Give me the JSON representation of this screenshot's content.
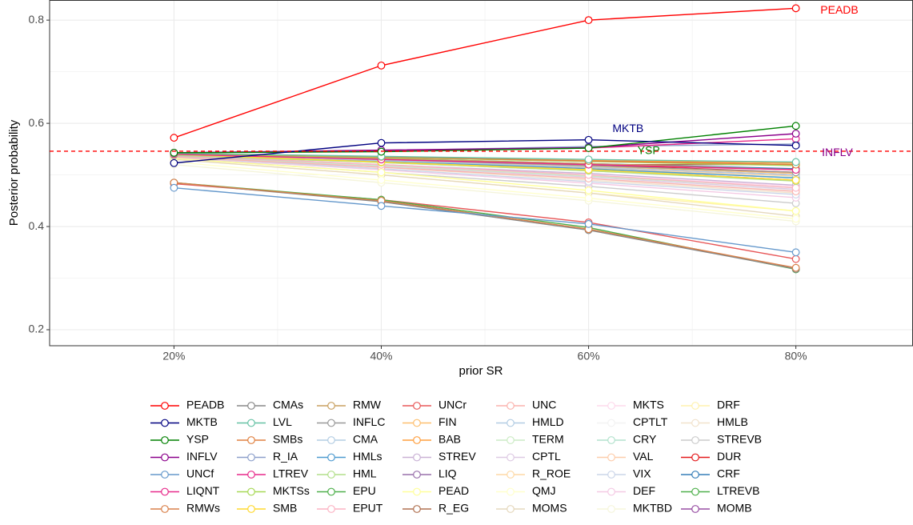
{
  "chart_data": {
    "type": "line",
    "x_label": "prior SR",
    "y_label": "Posterior probability",
    "x": [
      20,
      40,
      60,
      80
    ],
    "xlim": [
      8,
      91.3
    ],
    "ylim": [
      0.169,
      0.839
    ],
    "xticks": [
      {
        "value": 20,
        "label": "20%"
      },
      {
        "value": 40,
        "label": "40%"
      },
      {
        "value": 60,
        "label": "60%"
      },
      {
        "value": 80,
        "label": "80%"
      }
    ],
    "yticks": [
      0.2,
      0.4,
      0.6,
      0.8
    ],
    "grid": true,
    "legend": "bottom",
    "hline": {
      "value": 0.546,
      "color": "#ff0000"
    },
    "annotations": [
      {
        "text": "PEADB",
        "x": 84.2,
        "y": 0.818,
        "color": "#ff0000"
      },
      {
        "text": "MKTB",
        "x": 63.8,
        "y": 0.589,
        "color": "#000080"
      },
      {
        "text": "YSP",
        "x": 65.8,
        "y": 0.546,
        "color": "#008000"
      },
      {
        "text": "INFLV",
        "x": 84.0,
        "y": 0.542,
        "color": "#8b008b"
      }
    ],
    "series": [
      {
        "name": "PEADB",
        "color": "#ff0000",
        "values": [
          0.572,
          0.712,
          0.8,
          0.823
        ]
      },
      {
        "name": "MKTB",
        "color": "#000080",
        "values": [
          0.523,
          0.562,
          0.568,
          0.557
        ]
      },
      {
        "name": "YSP",
        "color": "#008000",
        "values": [
          0.543,
          0.545,
          0.552,
          0.595
        ]
      },
      {
        "name": "INFLV",
        "color": "#8b008b",
        "values": [
          0.543,
          0.548,
          0.553,
          0.58
        ]
      },
      {
        "name": "UNCf",
        "color": "#6699cc",
        "values": [
          0.475,
          0.44,
          0.405,
          0.35
        ]
      },
      {
        "name": "LIQNT",
        "color": "#e7298a",
        "values": [
          0.543,
          0.546,
          0.552,
          0.57
        ]
      },
      {
        "name": "RMWs",
        "color": "#d9804a",
        "values": [
          0.485,
          0.45,
          0.395,
          0.32
        ]
      },
      {
        "name": "CMAs",
        "color": "#888888",
        "values": [
          0.485,
          0.448,
          0.393,
          0.318
        ]
      },
      {
        "name": "LVL",
        "color": "#66c2a5",
        "values": [
          0.542,
          0.536,
          0.53,
          0.525
        ]
      },
      {
        "name": "SMBs",
        "color": "#e08040",
        "values": [
          0.542,
          0.535,
          0.527,
          0.52
        ]
      },
      {
        "name": "R_IA",
        "color": "#8da0cb",
        "values": [
          0.543,
          0.547,
          0.555,
          0.56
        ]
      },
      {
        "name": "LTREV",
        "color": "#e7298a",
        "values": [
          0.54,
          0.53,
          0.52,
          0.51
        ]
      },
      {
        "name": "MKTSs",
        "color": "#a6d854",
        "values": [
          0.541,
          0.534,
          0.526,
          0.518
        ]
      },
      {
        "name": "SMB",
        "color": "#ffd92f",
        "values": [
          0.54,
          0.525,
          0.51,
          0.49
        ]
      },
      {
        "name": "RMW",
        "color": "#c8a060",
        "values": [
          0.541,
          0.532,
          0.522,
          0.51
        ]
      },
      {
        "name": "INFLC",
        "color": "#999999",
        "values": [
          0.541,
          0.53,
          0.518,
          0.505
        ]
      },
      {
        "name": "CMA",
        "color": "#b3cde3",
        "values": [
          0.54,
          0.528,
          0.515,
          0.5
        ]
      },
      {
        "name": "HMLs",
        "color": "#4f9bd0",
        "values": [
          0.54,
          0.527,
          0.512,
          0.494
        ]
      },
      {
        "name": "HML",
        "color": "#b2df8a",
        "values": [
          0.538,
          0.524,
          0.508,
          0.488
        ]
      },
      {
        "name": "EPU",
        "color": "#4daf4a",
        "values": [
          0.485,
          0.452,
          0.398,
          0.317
        ]
      },
      {
        "name": "EPUT",
        "color": "#fbb4c4",
        "values": [
          0.538,
          0.52,
          0.5,
          0.475
        ]
      },
      {
        "name": "UNCr",
        "color": "#e8595a",
        "values": [
          0.483,
          0.452,
          0.408,
          0.337
        ]
      },
      {
        "name": "FIN",
        "color": "#fdbf6f",
        "values": [
          0.54,
          0.529,
          0.517,
          0.503
        ]
      },
      {
        "name": "BAB",
        "color": "#ff9f3f",
        "values": [
          0.541,
          0.535,
          0.528,
          0.523
        ]
      },
      {
        "name": "STREV",
        "color": "#cab2d6",
        "values": [
          0.537,
          0.52,
          0.503,
          0.48
        ]
      },
      {
        "name": "LIQ",
        "color": "#9970ab",
        "values": [
          0.54,
          0.528,
          0.515,
          0.5
        ]
      },
      {
        "name": "PEAD",
        "color": "#ffff99",
        "values": [
          0.532,
          0.505,
          0.47,
          0.43
        ]
      },
      {
        "name": "R_EG",
        "color": "#b07050",
        "values": [
          0.541,
          0.53,
          0.52,
          0.52
        ]
      },
      {
        "name": "UNC",
        "color": "#fbb4ae",
        "values": [
          0.535,
          0.515,
          0.493,
          0.468
        ]
      },
      {
        "name": "HMLD",
        "color": "#b3cde3",
        "values": [
          0.538,
          0.524,
          0.508,
          0.49
        ]
      },
      {
        "name": "TERM",
        "color": "#ccebc5",
        "values": [
          0.536,
          0.518,
          0.498,
          0.475
        ]
      },
      {
        "name": "CPTL",
        "color": "#decbe4",
        "values": [
          0.536,
          0.517,
          0.496,
          0.472
        ]
      },
      {
        "name": "R_ROE",
        "color": "#fed9a6",
        "values": [
          0.539,
          0.526,
          0.512,
          0.498
        ]
      },
      {
        "name": "QMJ",
        "color": "#ffffcc",
        "values": [
          0.525,
          0.49,
          0.455,
          0.415
        ]
      },
      {
        "name": "MOMS",
        "color": "#e5d8bd",
        "values": [
          0.53,
          0.5,
          0.465,
          0.42
        ]
      },
      {
        "name": "MKTS",
        "color": "#fddaec",
        "values": [
          0.537,
          0.52,
          0.5,
          0.478
        ]
      },
      {
        "name": "CPTLT",
        "color": "#f2f2f2",
        "values": [
          0.536,
          0.516,
          0.494,
          0.47
        ]
      },
      {
        "name": "CRY",
        "color": "#b3e2cd",
        "values": [
          0.539,
          0.525,
          0.51,
          0.495
        ]
      },
      {
        "name": "VAL",
        "color": "#fdcdac",
        "values": [
          0.539,
          0.527,
          0.514,
          0.5
        ]
      },
      {
        "name": "VIX",
        "color": "#cbd5e8",
        "values": [
          0.535,
          0.512,
          0.487,
          0.462
        ]
      },
      {
        "name": "DEF",
        "color": "#f4cae4",
        "values": [
          0.534,
          0.51,
          0.484,
          0.456
        ]
      },
      {
        "name": "MKTBD",
        "color": "#f5f5dc",
        "values": [
          0.52,
          0.485,
          0.45,
          0.41
        ]
      },
      {
        "name": "DRF",
        "color": "#fff2ae",
        "values": [
          0.53,
          0.5,
          0.465,
          0.43
        ]
      },
      {
        "name": "HMLB",
        "color": "#f1e2cc",
        "values": [
          0.536,
          0.515,
          0.49,
          0.465
        ]
      },
      {
        "name": "STREVB",
        "color": "#cccccc",
        "values": [
          0.533,
          0.505,
          0.478,
          0.445
        ]
      },
      {
        "name": "DUR",
        "color": "#e41a1c",
        "values": [
          0.54,
          0.53,
          0.52,
          0.505
        ]
      },
      {
        "name": "CRF",
        "color": "#377eb8",
        "values": [
          0.54,
          0.532,
          0.522,
          0.512
        ]
      },
      {
        "name": "LTREVB",
        "color": "#4daf4a",
        "values": [
          0.541,
          0.534,
          0.527,
          0.52
        ]
      },
      {
        "name": "MOMB",
        "color": "#984ea3",
        "values": [
          0.538,
          0.525,
          0.51,
          0.49
        ]
      }
    ]
  }
}
